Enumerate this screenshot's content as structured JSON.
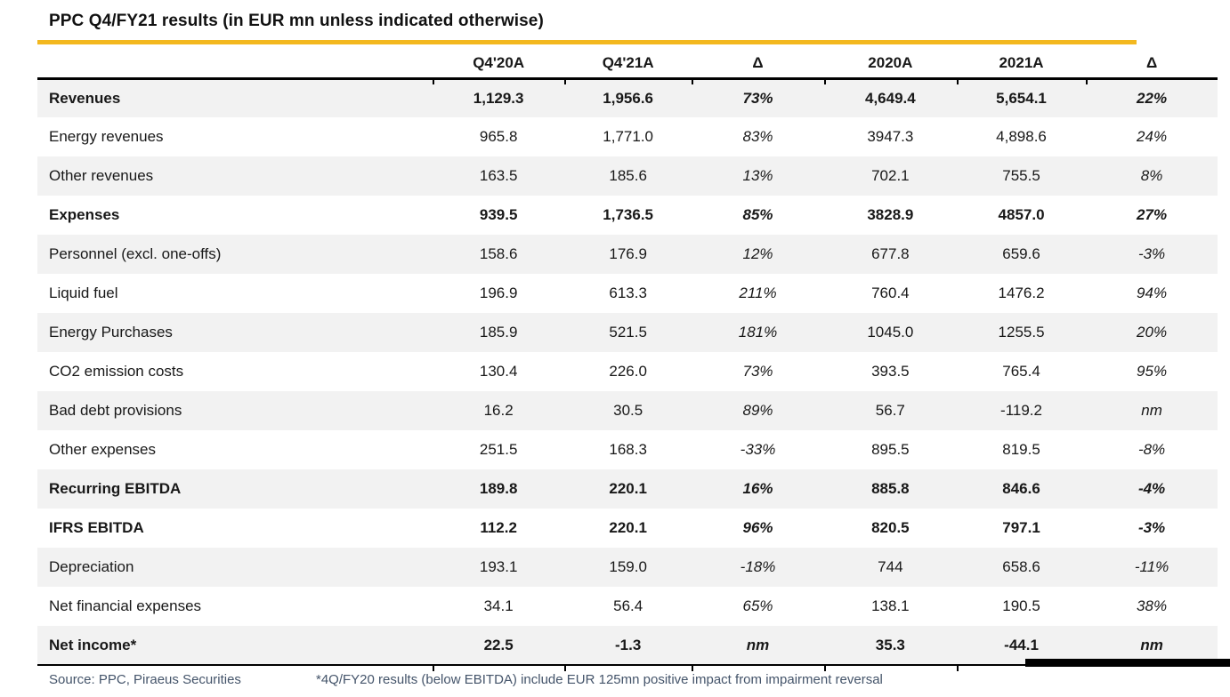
{
  "title": "PPC Q4/FY21 results (in EUR mn unless indicated otherwise)",
  "colors": {
    "accent_gold": "#F3B81F",
    "stripe_gray": "#F2F2F2",
    "footer_text": "#44546A",
    "border_black": "#000000"
  },
  "columns": [
    "",
    "Q4'20A",
    "Q4'21A",
    "Δ",
    "2020A",
    "2021A",
    "Δ"
  ],
  "rows": [
    {
      "label": "Revenues",
      "bold": true,
      "values": [
        "1,129.3",
        "1,956.6",
        "73%",
        "4,649.4",
        "5,654.1",
        "22%"
      ]
    },
    {
      "label": "Energy revenues",
      "bold": false,
      "values": [
        "965.8",
        "1,771.0",
        "83%",
        "3947.3",
        "4,898.6",
        "24%"
      ]
    },
    {
      "label": "Other revenues",
      "bold": false,
      "values": [
        "163.5",
        "185.6",
        "13%",
        "702.1",
        "755.5",
        "8%"
      ]
    },
    {
      "label": "Expenses",
      "bold": true,
      "values": [
        "939.5",
        "1,736.5",
        "85%",
        "3828.9",
        "4857.0",
        "27%"
      ]
    },
    {
      "label": "Personnel (excl. one-offs)",
      "bold": false,
      "values": [
        "158.6",
        "176.9",
        "12%",
        "677.8",
        "659.6",
        "-3%"
      ]
    },
    {
      "label": "Liquid fuel",
      "bold": false,
      "values": [
        "196.9",
        "613.3",
        "211%",
        "760.4",
        "1476.2",
        "94%"
      ]
    },
    {
      "label": "Energy Purchases",
      "bold": false,
      "values": [
        "185.9",
        "521.5",
        "181%",
        "1045.0",
        "1255.5",
        "20%"
      ]
    },
    {
      "label": "CO2 emission costs",
      "bold": false,
      "values": [
        "130.4",
        "226.0",
        "73%",
        "393.5",
        "765.4",
        "95%"
      ]
    },
    {
      "label": "Bad debt provisions",
      "bold": false,
      "values": [
        "16.2",
        "30.5",
        "89%",
        "56.7",
        "-119.2",
        "nm"
      ]
    },
    {
      "label": "Other expenses",
      "bold": false,
      "values": [
        "251.5",
        "168.3",
        "-33%",
        "895.5",
        "819.5",
        "-8%"
      ]
    },
    {
      "label": "Recurring EBITDA",
      "bold": true,
      "values": [
        "189.8",
        "220.1",
        "16%",
        "885.8",
        "846.6",
        "-4%"
      ]
    },
    {
      "label": "IFRS EBITDA",
      "bold": true,
      "values": [
        "112.2",
        "220.1",
        "96%",
        "820.5",
        "797.1",
        "-3%"
      ]
    },
    {
      "label": "Depreciation",
      "bold": false,
      "values": [
        "193.1",
        "159.0",
        "-18%",
        "744",
        "658.6",
        "-11%"
      ]
    },
    {
      "label": "Net financial expenses",
      "bold": false,
      "values": [
        "34.1",
        "56.4",
        "65%",
        "138.1",
        "190.5",
        "38%"
      ]
    },
    {
      "label": "Net income*",
      "bold": true,
      "values": [
        "22.5",
        "-1.3",
        "nm",
        "35.3",
        "-44.1",
        "nm"
      ]
    }
  ],
  "footer": {
    "source": "Source: PPC, Piraeus Securities",
    "note": "*4Q/FY20 results (below EBITDA) include EUR 125mn positive impact from impairment reversal"
  }
}
